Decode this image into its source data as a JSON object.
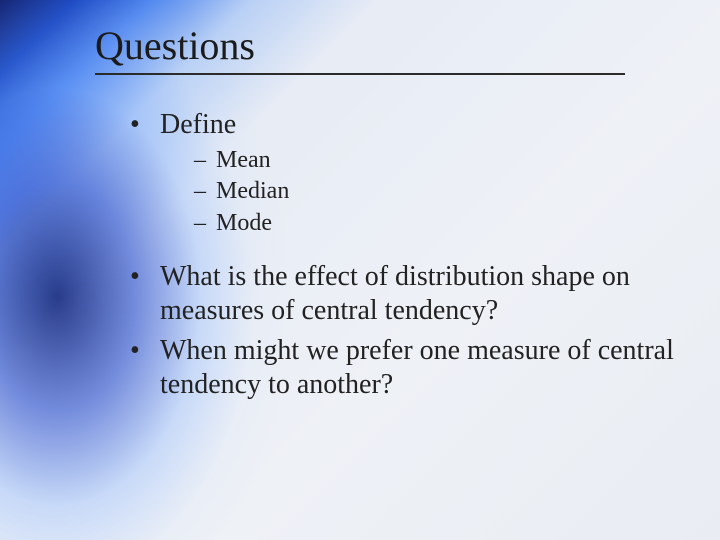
{
  "slide": {
    "title": "Questions",
    "title_fontsize": 40,
    "body_fontsize": 28,
    "sub_fontsize": 24,
    "text_color": "#1b1b1b",
    "underline_color": "#2b2b2b",
    "background_gradient": {
      "type": "radial+linear",
      "colors": [
        "#0a1a6a",
        "#1040c0",
        "#4f86ef",
        "#b9d0f5",
        "#e7ecf5",
        "#eef1f6",
        "#e9edf3"
      ]
    },
    "bullets": [
      {
        "text": "Define",
        "sub": [
          "Mean",
          "Median",
          "Mode"
        ]
      },
      {
        "text": "What is the effect of distribution shape on measures of central tendency?"
      },
      {
        "text": "When might we prefer one measure of central tendency to another?"
      }
    ]
  }
}
